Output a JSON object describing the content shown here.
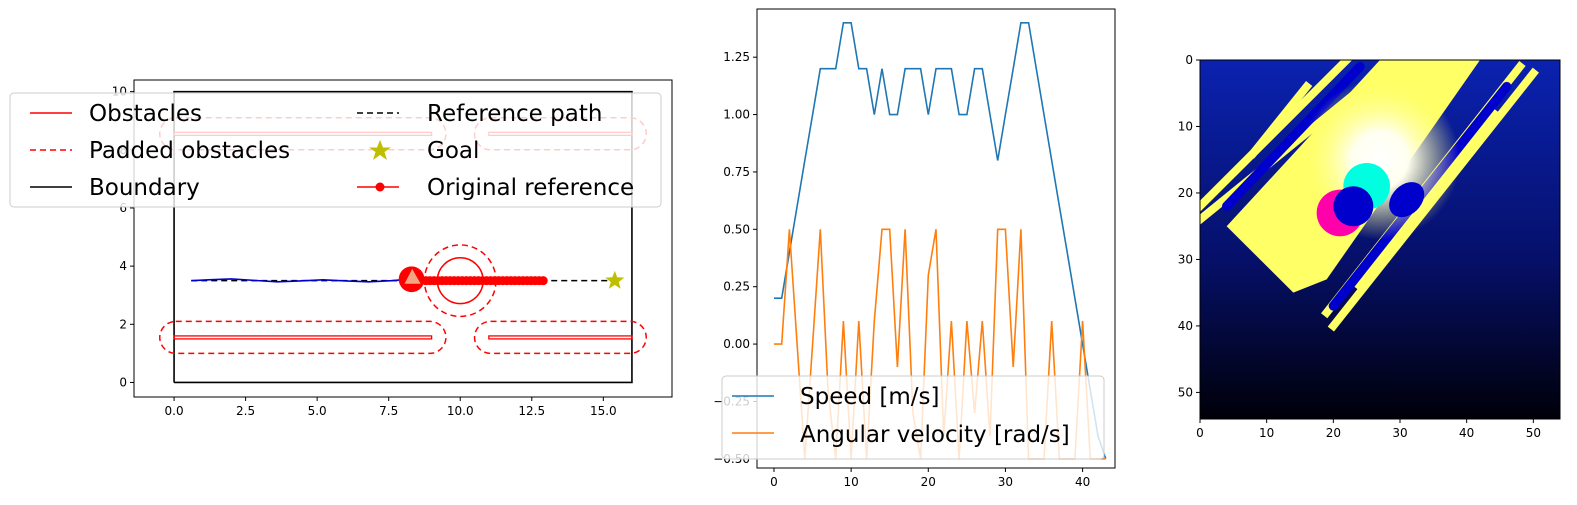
{
  "colors": {
    "obstacle": "#ff0000",
    "padded": "#ff0000",
    "boundary": "#000000",
    "reference": "#000000",
    "goal": "#bfbf00",
    "original_reference": "#ff0000",
    "trajectory": "#0000cc",
    "robot": "#ff0000",
    "robot_heading": "#f4a582",
    "speed": "#1f77b4",
    "angular": "#ff7f0e",
    "img_bg_top": "#0a1a9c",
    "img_bg_bottom": "#000010",
    "img_free": "#ffff66",
    "img_robot": "#ff00aa",
    "img_cyan": "#00ffe0"
  },
  "chart_data": [
    {
      "type": "line",
      "title": "",
      "xlim": [
        -1.4,
        17.4
      ],
      "ylim": [
        -0.5,
        10.4
      ],
      "xticks": [
        "0.0",
        "2.5",
        "5.0",
        "7.5",
        "10.0",
        "12.5",
        "15.0"
      ],
      "xtick_values": [
        0,
        2.5,
        5,
        7.5,
        10,
        12.5,
        15
      ],
      "yticks": [
        "0",
        "2",
        "4",
        "6",
        "8",
        "10"
      ],
      "ytick_values": [
        0,
        2,
        4,
        6,
        8,
        10
      ],
      "boundary": [
        [
          0,
          0
        ],
        [
          16,
          0
        ],
        [
          16,
          10
        ],
        [
          0,
          10
        ],
        [
          0,
          0
        ]
      ],
      "obstacles": [
        {
          "x": [
            0,
            9
          ],
          "y": [
            1.5,
            1.6
          ]
        },
        {
          "x": [
            11,
            16
          ],
          "y": [
            1.5,
            1.6
          ]
        },
        {
          "x": [
            0,
            9
          ],
          "y": [
            8.5,
            8.6
          ]
        },
        {
          "x": [
            11,
            16
          ],
          "y": [
            8.5,
            8.6
          ]
        }
      ],
      "padded_obstacles": [
        {
          "x": [
            -0.5,
            9.5
          ],
          "y": [
            1.0,
            2.1
          ]
        },
        {
          "x": [
            10.5,
            16.5
          ],
          "y": [
            1.0,
            2.1
          ]
        },
        {
          "x": [
            -0.5,
            9.5
          ],
          "y": [
            8.0,
            9.1
          ]
        },
        {
          "x": [
            10.5,
            16.5
          ],
          "y": [
            8.0,
            9.1
          ]
        }
      ],
      "dynamic_obstacle": {
        "x": 10,
        "y": 3.5,
        "r": 0.8,
        "padded_r": 1.25
      },
      "reference_path": {
        "x": [
          0.6,
          15.4
        ],
        "y": [
          3.5,
          3.5
        ]
      },
      "goal": {
        "x": 15.4,
        "y": 3.5
      },
      "original_reference": {
        "x_start": 8.8,
        "x_end": 12.9,
        "count": 30,
        "y": 3.5
      },
      "trajectory": {
        "x": [
          0.6,
          1.2,
          2.0,
          2.8,
          3.6,
          4.4,
          5.2,
          6.0,
          6.8,
          7.6,
          8.2
        ],
        "y": [
          3.5,
          3.53,
          3.56,
          3.51,
          3.46,
          3.49,
          3.53,
          3.49,
          3.46,
          3.5,
          3.55
        ]
      },
      "robot": {
        "x": 8.3,
        "y": 3.55,
        "r": 0.45
      },
      "legend": {
        "placement": "top",
        "entries": [
          {
            "label": "Obstacles",
            "style": "solid",
            "marker": ""
          },
          {
            "label": "Reference path",
            "style": "dashed-black",
            "marker": ""
          },
          {
            "label": "Padded obstacles",
            "style": "dashed",
            "marker": ""
          },
          {
            "label": "Goal",
            "style": "none",
            "marker": "star"
          },
          {
            "label": "Boundary",
            "style": "solid-black",
            "marker": ""
          },
          {
            "label": "Original reference",
            "style": "solid",
            "marker": "dot"
          }
        ]
      }
    },
    {
      "type": "line",
      "title": "",
      "xlim": [
        -2.2,
        44.2
      ],
      "ylim": [
        -0.54,
        1.46
      ],
      "xticks": [
        "0",
        "10",
        "20",
        "30",
        "40"
      ],
      "xtick_values": [
        0,
        10,
        20,
        30,
        40
      ],
      "yticks": [
        "−0.50",
        "−0.25",
        "0.00",
        "0.25",
        "0.50",
        "0.75",
        "1.00",
        "1.25"
      ],
      "ytick_values": [
        -0.5,
        -0.25,
        0,
        0.25,
        0.5,
        0.75,
        1.0,
        1.25
      ],
      "x": [
        0,
        1,
        2,
        3,
        4,
        5,
        6,
        7,
        8,
        9,
        10,
        11,
        12,
        13,
        14,
        15,
        16,
        17,
        18,
        19,
        20,
        21,
        22,
        23,
        24,
        25,
        26,
        27,
        28,
        29,
        30,
        31,
        32,
        33,
        34,
        35,
        36,
        37,
        38,
        39,
        40,
        41,
        42,
        43
      ],
      "series": [
        {
          "name": "Speed [m/s]",
          "values": [
            0.2,
            0.2,
            0.4,
            0.6,
            0.8,
            1.0,
            1.2,
            1.2,
            1.2,
            1.4,
            1.4,
            1.2,
            1.2,
            1.0,
            1.2,
            1.0,
            1.0,
            1.2,
            1.2,
            1.2,
            1.0,
            1.2,
            1.2,
            1.2,
            1.0,
            1.0,
            1.2,
            1.2,
            1.0,
            0.8,
            1.0,
            1.2,
            1.4,
            1.4,
            1.2,
            1.0,
            0.8,
            0.6,
            0.4,
            0.2,
            0.0,
            -0.2,
            -0.4,
            -0.5
          ]
        },
        {
          "name": "Angular velocity [rad/s]",
          "values": [
            0.0,
            0.0,
            0.5,
            0.0,
            -0.5,
            0.0,
            0.5,
            -0.2,
            -0.5,
            0.1,
            -0.5,
            0.1,
            -0.5,
            0.1,
            0.5,
            0.5,
            -0.1,
            0.5,
            -0.3,
            -0.5,
            0.3,
            0.5,
            -0.4,
            0.1,
            -0.5,
            0.1,
            -0.3,
            0.1,
            -0.4,
            0.5,
            0.5,
            -0.1,
            0.5,
            -0.5,
            -0.5,
            -0.5,
            0.1,
            -0.5,
            -0.5,
            -0.5,
            0.1,
            -0.5,
            -0.5,
            -0.5
          ]
        }
      ],
      "legend": {
        "placement": "lower-left"
      }
    },
    {
      "type": "heatmap",
      "title": "",
      "xlim": [
        0,
        54
      ],
      "ylim": [
        54,
        0
      ],
      "xticks": [
        "0",
        "10",
        "20",
        "30",
        "40",
        "50"
      ],
      "xtick_values": [
        0,
        10,
        20,
        30,
        40,
        50
      ],
      "yticks": [
        "0",
        "10",
        "20",
        "30",
        "40",
        "50"
      ],
      "ytick_values": [
        0,
        10,
        20,
        30,
        40,
        50
      ],
      "regions": {
        "free_band": [
          [
            4,
            25
          ],
          [
            27,
            0
          ],
          [
            42,
            0
          ],
          [
            19,
            33
          ],
          [
            14,
            35
          ]
        ],
        "robot_center": {
          "x": 21,
          "y": 23,
          "r": 3.5
        },
        "cyan_center": {
          "x": 25,
          "y": 19,
          "r": 3.5
        },
        "blue_obstacle_left": {
          "x": 23,
          "y": 22,
          "r": 3
        },
        "blue_obstacle_right": {
          "x": 31,
          "y": 21,
          "rx": 3,
          "ry": 2.2
        }
      }
    }
  ]
}
